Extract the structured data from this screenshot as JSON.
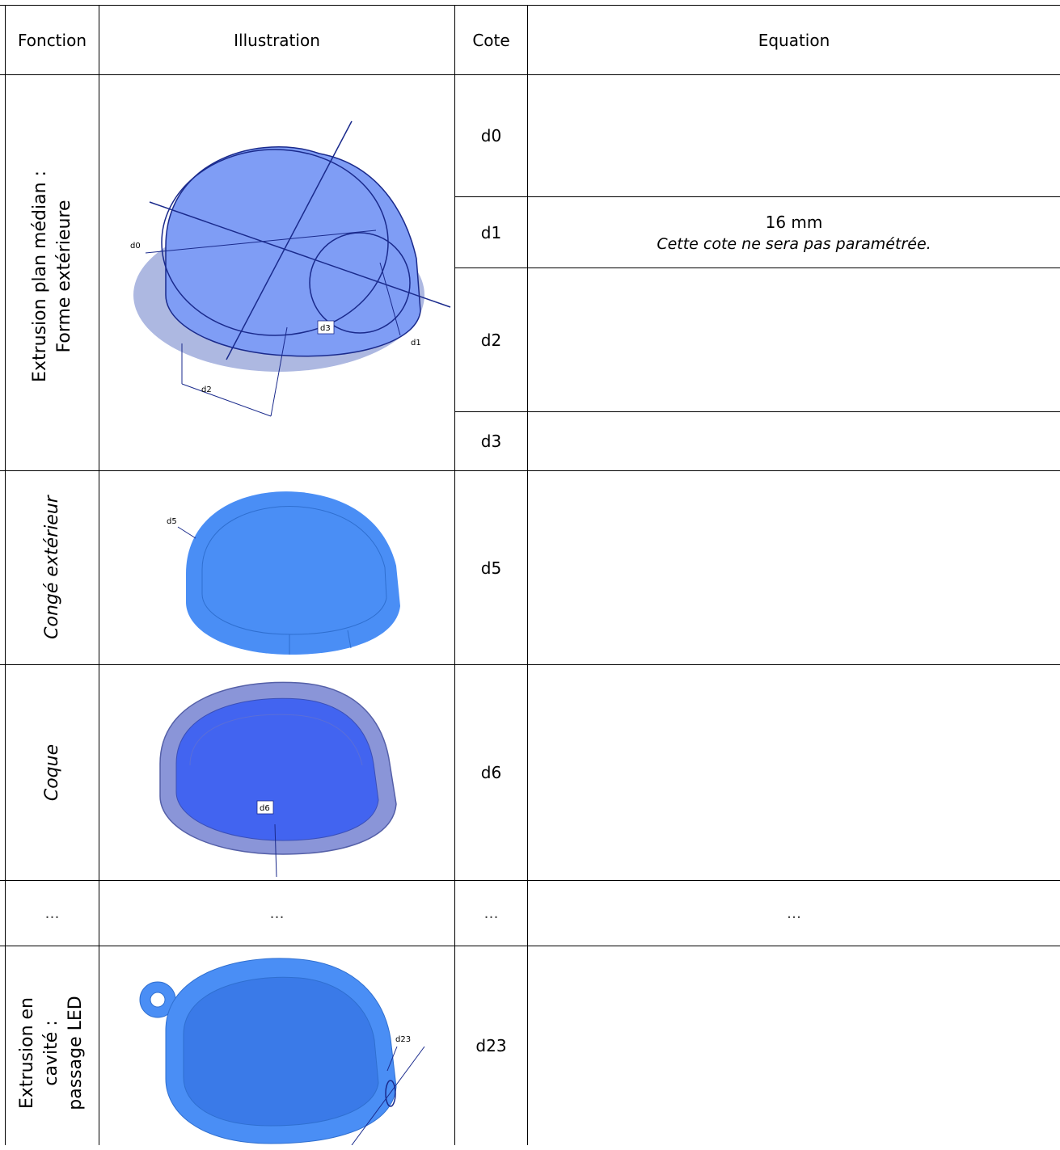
{
  "table": {
    "headers": {
      "fonction": "Fonction",
      "illustration": "Illustration",
      "cote": "Cote",
      "equation": "Equation"
    },
    "rows": [
      {
        "fonction_line1": "Extrusion plan médian :",
        "fonction_line2": "Forme extérieure",
        "cotes": [
          {
            "name": "d0",
            "equation_main": "",
            "equation_note": ""
          },
          {
            "name": "d1",
            "equation_main": "16 mm",
            "equation_note": "Cette cote ne sera pas paramétrée."
          },
          {
            "name": "d2",
            "equation_main": "",
            "equation_note": ""
          },
          {
            "name": "d3",
            "equation_main": "",
            "equation_note": ""
          }
        ],
        "labels": [
          "d0",
          "d1",
          "d2",
          "d3"
        ]
      },
      {
        "fonction": "Congé extérieur",
        "cote": "d5",
        "labels": [
          "d5"
        ]
      },
      {
        "fonction": "Coque",
        "cote": "d6",
        "labels": [
          "d6"
        ]
      },
      {
        "fonction": "…",
        "illustration": "…",
        "cote": "…",
        "equation": "…"
      },
      {
        "fonction_line1": "Extrusion en",
        "fonction_line2": "cavité :",
        "fonction_line3": "passage LED",
        "cote": "d23",
        "labels": [
          "d23"
        ]
      }
    ]
  },
  "colors": {
    "blue_light": "#7f9df5",
    "blue_mid": "#4a8ef5",
    "blue_dark": "#4264f0",
    "line": "#1a2a8c"
  }
}
